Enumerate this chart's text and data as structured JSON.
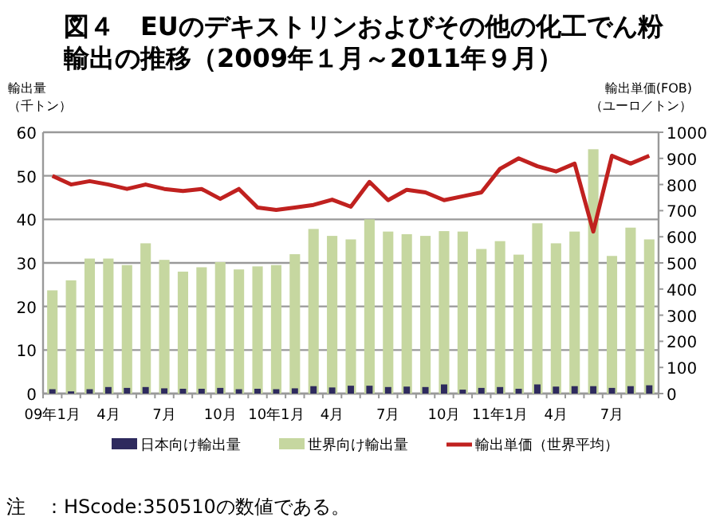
{
  "chart_data": {
    "type": "bar",
    "title": "図４　EUのデキストリンおよびその他の化工でん粉輸出の推移（2009年１月～2011年９月）",
    "ylabel": "輸出量（千トン）",
    "y2label": "輸出単価(FOB)（ユーロ／トン）",
    "categories": [
      "09年1月",
      null,
      null,
      "4月",
      null,
      null,
      "7月",
      null,
      null,
      "10月",
      null,
      null,
      "10年1月",
      null,
      null,
      "4月",
      null,
      null,
      "7月",
      null,
      null,
      "10月",
      null,
      null,
      "11年1月",
      null,
      null,
      "4月",
      null,
      null,
      "7月",
      null,
      null
    ],
    "series": [
      {
        "name": "日本向け輸出量",
        "color": "#2e2a5e",
        "values": [
          1,
          0.5,
          1,
          1.5,
          1.3,
          1.5,
          1.2,
          1.1,
          1.1,
          1.3,
          1,
          1.1,
          1,
          1.2,
          1.7,
          1.4,
          1.8,
          1.8,
          1.5,
          1.6,
          1.5,
          2.1,
          0.9,
          1.3,
          1.5,
          1.1,
          2.1,
          1.6,
          1.7,
          1.7,
          1.3,
          1.7,
          1.9
        ]
      },
      {
        "name": "世界向け輸出量",
        "color": "#c6d7a0",
        "values": [
          23.7,
          26,
          31,
          31,
          29.5,
          34.5,
          30.7,
          28,
          29,
          30.2,
          28.5,
          29.2,
          29.5,
          32,
          37.8,
          36.2,
          35.4,
          40,
          37.2,
          36.6,
          36.2,
          37.3,
          37.2,
          33.2,
          35,
          31.9,
          39.1,
          34.5,
          37.2,
          56.1,
          31.6,
          38.1,
          35.4
        ]
      },
      {
        "name": "輸出単価（世界平均）",
        "type": "line",
        "axis": "y2",
        "color": "#c0211f",
        "values": [
          833,
          800,
          813,
          800,
          783,
          800,
          783,
          775,
          783,
          745,
          783,
          712,
          703,
          712,
          722,
          742,
          715,
          810,
          740,
          780,
          770,
          740,
          755,
          770,
          860,
          900,
          870,
          850,
          880,
          620,
          910,
          880,
          910
        ]
      }
    ],
    "ylim": [
      0,
      60
    ],
    "yticks": [
      0,
      10,
      20,
      30,
      40,
      50,
      60
    ],
    "y2lim": [
      0,
      1000
    ],
    "y2ticks": [
      0,
      100,
      200,
      300,
      400,
      500,
      600,
      700,
      800,
      900,
      1000
    ],
    "grid": "y",
    "legend": "bottom",
    "annotations": [
      "注　：HScode:350510の数値である。"
    ]
  }
}
